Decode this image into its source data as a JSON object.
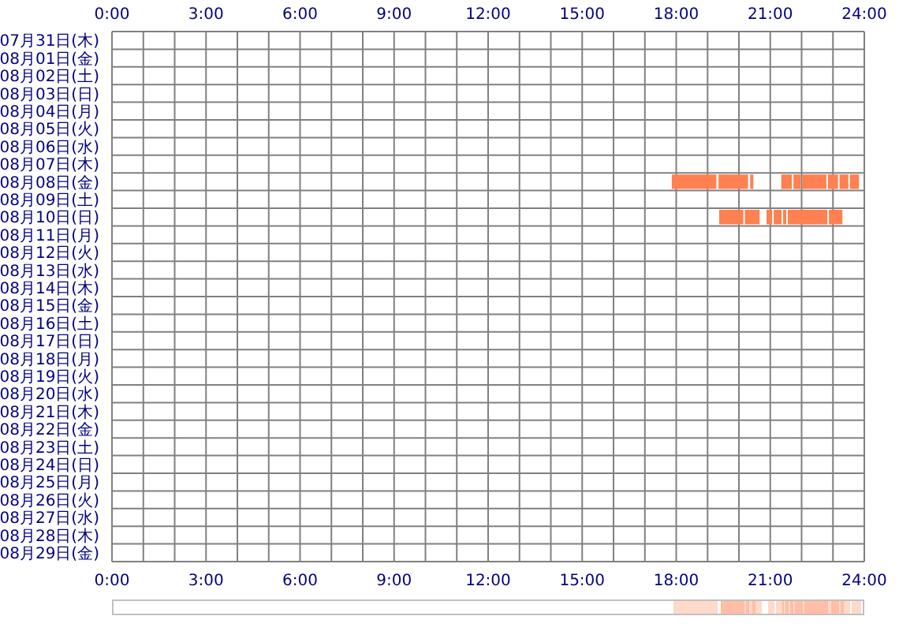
{
  "chart_data": {
    "type": "bar",
    "orientation": "horizontal",
    "grid": true,
    "categories": [
      "07月31日(木)",
      "08月01日(金)",
      "08月02日(土)",
      "08月03日(日)",
      "08月04日(月)",
      "08月05日(火)",
      "08月06日(水)",
      "08月07日(木)",
      "08月08日(金)",
      "08月09日(土)",
      "08月10日(日)",
      "08月11日(月)",
      "08月12日(火)",
      "08月13日(水)",
      "08月14日(木)",
      "08月15日(金)",
      "08月16日(土)",
      "08月17日(日)",
      "08月18日(月)",
      "08月19日(火)",
      "08月20日(水)",
      "08月21日(木)",
      "08月22日(金)",
      "08月23日(土)",
      "08月24日(日)",
      "08月25日(月)",
      "08月26日(火)",
      "08月27日(水)",
      "08月28日(木)",
      "08月29日(金)"
    ],
    "xlim": [
      0,
      24
    ],
    "xticks": [
      {
        "value": 0,
        "label": "0:00"
      },
      {
        "value": 1,
        "label": null
      },
      {
        "value": 2,
        "label": null
      },
      {
        "value": 3,
        "label": "3:00"
      },
      {
        "value": 4,
        "label": null
      },
      {
        "value": 5,
        "label": null
      },
      {
        "value": 6,
        "label": "6:00"
      },
      {
        "value": 7,
        "label": null
      },
      {
        "value": 8,
        "label": null
      },
      {
        "value": 9,
        "label": "9:00"
      },
      {
        "value": 10,
        "label": null
      },
      {
        "value": 11,
        "label": null
      },
      {
        "value": 12,
        "label": "12:00"
      },
      {
        "value": 13,
        "label": null
      },
      {
        "value": 14,
        "label": null
      },
      {
        "value": 15,
        "label": "15:00"
      },
      {
        "value": 16,
        "label": null
      },
      {
        "value": 17,
        "label": null
      },
      {
        "value": 18,
        "label": "18:00"
      },
      {
        "value": 19,
        "label": null
      },
      {
        "value": 20,
        "label": null
      },
      {
        "value": 21,
        "label": "21:00"
      },
      {
        "value": 22,
        "label": null
      },
      {
        "value": 23,
        "label": null
      },
      {
        "value": 24,
        "label": "24:00"
      }
    ],
    "x2lim": [
      0,
      24
    ],
    "x2ticks": [
      {
        "value": 0,
        "label": "0:00"
      },
      {
        "value": 1,
        "label": null
      },
      {
        "value": 2,
        "label": null
      },
      {
        "value": 3,
        "label": "3:00"
      },
      {
        "value": 4,
        "label": null
      },
      {
        "value": 5,
        "label": null
      },
      {
        "value": 6,
        "label": "6:00"
      },
      {
        "value": 7,
        "label": null
      },
      {
        "value": 8,
        "label": null
      },
      {
        "value": 9,
        "label": "9:00"
      },
      {
        "value": 10,
        "label": null
      },
      {
        "value": 11,
        "label": null
      },
      {
        "value": 12,
        "label": "12:00"
      },
      {
        "value": 13,
        "label": null
      },
      {
        "value": 14,
        "label": null
      },
      {
        "value": 15,
        "label": "15:00"
      },
      {
        "value": 16,
        "label": null
      },
      {
        "value": 17,
        "label": null
      },
      {
        "value": 18,
        "label": "18:00"
      },
      {
        "value": 19,
        "label": null
      },
      {
        "value": 20,
        "label": null
      },
      {
        "value": 21,
        "label": "21:00"
      },
      {
        "value": 22,
        "label": null
      },
      {
        "value": 23,
        "label": null
      },
      {
        "value": 24,
        "label": "24:00"
      }
    ],
    "series": [
      {
        "color": "#ff8050",
        "base": [
          null,
          null,
          null,
          null,
          null,
          null,
          null,
          null,
          17.86,
          null,
          19.37,
          null,
          null,
          null,
          null,
          null,
          null,
          null,
          null,
          null,
          null,
          null,
          null,
          null,
          null,
          null,
          null,
          null,
          null,
          null
        ],
        "values": [
          null,
          null,
          null,
          null,
          null,
          null,
          null,
          null,
          1.42,
          null,
          0.77,
          null,
          null,
          null,
          null,
          null,
          null,
          null,
          null,
          null,
          null,
          null,
          null,
          null,
          null,
          null,
          null,
          null,
          null,
          null
        ]
      },
      {
        "color": "#ff8050",
        "base": [
          null,
          null,
          null,
          null,
          null,
          null,
          null,
          null,
          19.35,
          null,
          20.19,
          null,
          null,
          null,
          null,
          null,
          null,
          null,
          null,
          null,
          null,
          null,
          null,
          null,
          null,
          null,
          null,
          null,
          null,
          null
        ],
        "values": [
          null,
          null,
          null,
          null,
          null,
          null,
          null,
          null,
          0.94,
          null,
          0.47,
          null,
          null,
          null,
          null,
          null,
          null,
          null,
          null,
          null,
          null,
          null,
          null,
          null,
          null,
          null,
          null,
          null,
          null,
          null
        ]
      },
      {
        "color": "#ff8050",
        "base": [
          null,
          null,
          null,
          null,
          null,
          null,
          null,
          null,
          20.36,
          null,
          20.88,
          null,
          null,
          null,
          null,
          null,
          null,
          null,
          null,
          null,
          null,
          null,
          null,
          null,
          null,
          null,
          null,
          null,
          null,
          null
        ],
        "values": [
          null,
          null,
          null,
          null,
          null,
          null,
          null,
          null,
          0.1,
          null,
          0.18,
          null,
          null,
          null,
          null,
          null,
          null,
          null,
          null,
          null,
          null,
          null,
          null,
          null,
          null,
          null,
          null,
          null,
          null,
          null
        ]
      },
      {
        "color": "#ff8050",
        "base": [
          null,
          null,
          null,
          null,
          null,
          null,
          null,
          null,
          21.35,
          null,
          21.11,
          null,
          null,
          null,
          null,
          null,
          null,
          null,
          null,
          null,
          null,
          null,
          null,
          null,
          null,
          null,
          null,
          null,
          null,
          null
        ],
        "values": [
          null,
          null,
          null,
          null,
          null,
          null,
          null,
          null,
          0.34,
          null,
          0.25,
          null,
          null,
          null,
          null,
          null,
          null,
          null,
          null,
          null,
          null,
          null,
          null,
          null,
          null,
          null,
          null,
          null,
          null,
          null
        ]
      },
      {
        "color": "#ff8050",
        "base": [
          null,
          null,
          null,
          null,
          null,
          null,
          null,
          null,
          21.74,
          null,
          21.41,
          null,
          null,
          null,
          null,
          null,
          null,
          null,
          null,
          null,
          null,
          null,
          null,
          null,
          null,
          null,
          null,
          null,
          null,
          null
        ],
        "values": [
          null,
          null,
          null,
          null,
          null,
          null,
          null,
          null,
          0.23,
          null,
          0.1,
          null,
          null,
          null,
          null,
          null,
          null,
          null,
          null,
          null,
          null,
          null,
          null,
          null,
          null,
          null,
          null,
          null,
          null,
          null
        ]
      },
      {
        "color": "#ff8050",
        "base": [
          null,
          null,
          null,
          null,
          null,
          null,
          null,
          null,
          22.02,
          null,
          21.56,
          null,
          null,
          null,
          null,
          null,
          null,
          null,
          null,
          null,
          null,
          null,
          null,
          null,
          null,
          null,
          null,
          null,
          null,
          null
        ],
        "values": [
          null,
          null,
          null,
          null,
          null,
          null,
          null,
          null,
          0.77,
          null,
          1.26,
          null,
          null,
          null,
          null,
          null,
          null,
          null,
          null,
          null,
          null,
          null,
          null,
          null,
          null,
          null,
          null,
          null,
          null,
          null
        ]
      },
      {
        "color": "#ff8050",
        "base": [
          null,
          null,
          null,
          null,
          null,
          null,
          null,
          null,
          22.84,
          null,
          22.87,
          null,
          null,
          null,
          null,
          null,
          null,
          null,
          null,
          null,
          null,
          null,
          null,
          null,
          null,
          null,
          null,
          null,
          null,
          null
        ],
        "values": [
          null,
          null,
          null,
          null,
          null,
          null,
          null,
          null,
          0.32,
          null,
          0.43,
          null,
          null,
          null,
          null,
          null,
          null,
          null,
          null,
          null,
          null,
          null,
          null,
          null,
          null,
          null,
          null,
          null,
          null,
          null
        ]
      },
      {
        "color": "#ff8050",
        "base": [
          null,
          null,
          null,
          null,
          null,
          null,
          null,
          null,
          23.21,
          null,
          null,
          null,
          null,
          null,
          null,
          null,
          null,
          null,
          null,
          null,
          null,
          null,
          null,
          null,
          null,
          null,
          null,
          null,
          null,
          null
        ],
        "values": [
          null,
          null,
          null,
          null,
          null,
          null,
          null,
          null,
          0.28,
          null,
          null,
          null,
          null,
          null,
          null,
          null,
          null,
          null,
          null,
          null,
          null,
          null,
          null,
          null,
          null,
          null,
          null,
          null,
          null,
          null
        ]
      },
      {
        "color": "#ff8050",
        "base": [
          null,
          null,
          null,
          null,
          null,
          null,
          null,
          null,
          23.54,
          null,
          null,
          null,
          null,
          null,
          null,
          null,
          null,
          null,
          null,
          null,
          null,
          null,
          null,
          null,
          null,
          null,
          null,
          null,
          null,
          null
        ],
        "values": [
          null,
          null,
          null,
          null,
          null,
          null,
          null,
          null,
          0.29,
          null,
          null,
          null,
          null,
          null,
          null,
          null,
          null,
          null,
          null,
          null,
          null,
          null,
          null,
          null,
          null,
          null,
          null,
          null,
          null,
          null
        ]
      }
    ]
  }
}
